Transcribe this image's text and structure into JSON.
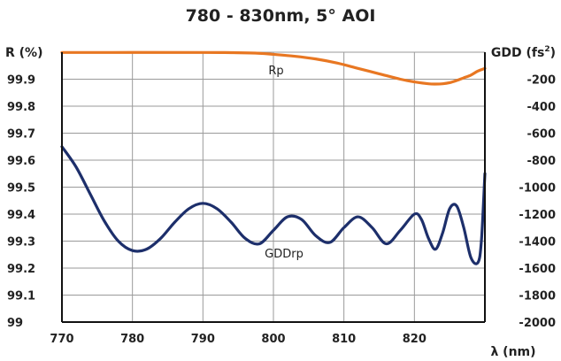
{
  "chart_data": {
    "type": "line",
    "title": "780 - 830nm, 5° AOI",
    "xlabel": "λ (nm)",
    "ylabel_left": "R (%)",
    "ylabel_right_base": "GDD (fs",
    "ylabel_right_sup": "2",
    "ylabel_right_tail": ")",
    "xlim": [
      770,
      830
    ],
    "ylim_left": [
      99,
      100
    ],
    "ylim_right": [
      -2000,
      0
    ],
    "x_ticks": [
      770,
      780,
      790,
      800,
      810,
      820
    ],
    "x_tick_labels": [
      "770",
      "780",
      "790",
      "800",
      "810",
      "820"
    ],
    "y_left_ticks": [
      99,
      99.1,
      99.2,
      99.3,
      99.4,
      99.5,
      99.6,
      99.7,
      99.8,
      99.9
    ],
    "y_left_tick_labels": [
      "99",
      "99.1",
      "99.2",
      "99.3",
      "99.4",
      "99.5",
      "99.6",
      "99.7",
      "99.8",
      "99.9"
    ],
    "y_right_ticks": [
      -2000,
      -1800,
      -1600,
      -1400,
      -1200,
      -1000,
      -800,
      -600,
      -400,
      -200
    ],
    "y_right_tick_labels": [
      "-2000",
      "-1800",
      "-1600",
      "-1400",
      "-1200",
      "-1000",
      "-800",
      "-600",
      "-400",
      "-200"
    ],
    "grid": true,
    "series": [
      {
        "name": "Rp",
        "axis": "left",
        "color": "#e87722",
        "x": [
          770,
          790,
          795,
          798,
          800,
          803,
          806,
          809,
          812,
          815,
          818,
          820,
          822,
          823,
          824,
          825,
          826,
          827,
          828,
          829,
          830
        ],
        "values": [
          99.999,
          99.999,
          99.998,
          99.996,
          99.992,
          99.985,
          99.975,
          99.96,
          99.94,
          99.92,
          99.9,
          99.89,
          99.883,
          99.882,
          99.883,
          99.887,
          99.895,
          99.905,
          99.915,
          99.93,
          99.94
        ]
      },
      {
        "name": "GDDrp",
        "axis": "right",
        "color": "#1d2f6b",
        "x": [
          770,
          772,
          774,
          776,
          778,
          780,
          782,
          784,
          786,
          788,
          790,
          792,
          794,
          796,
          798,
          800,
          802,
          804,
          806,
          808,
          810,
          812,
          814,
          816,
          818,
          820,
          821,
          822,
          823,
          824,
          825,
          826,
          827,
          828,
          829,
          829.5,
          830
        ],
        "values": [
          -700,
          -850,
          -1050,
          -1250,
          -1400,
          -1470,
          -1460,
          -1380,
          -1260,
          -1160,
          -1120,
          -1160,
          -1260,
          -1380,
          -1420,
          -1320,
          -1220,
          -1240,
          -1360,
          -1410,
          -1300,
          -1220,
          -1300,
          -1420,
          -1320,
          -1200,
          -1240,
          -1380,
          -1460,
          -1340,
          -1160,
          -1140,
          -1300,
          -1520,
          -1560,
          -1400,
          -900
        ]
      }
    ]
  }
}
